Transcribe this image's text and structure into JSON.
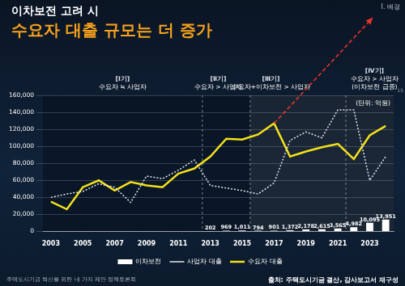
{
  "slide": {
    "section": "Ⅰ. 배경",
    "title": "이차보전 고려 시",
    "subtitle": "수요자 대출 규모는 더 증가",
    "page": "15",
    "footer": "주택도시기금 혁신을 위한 네 가지 제안 정책토론회",
    "source": "출처: 주택도시기금 결산, 감사보고서 재구성"
  },
  "chart_data": {
    "type": "bar",
    "unit_note": "(단위: 억원)",
    "annotations": [
      [
        "[Ⅰ기]",
        "수요자 ≒ 사업자"
      ],
      [
        "[Ⅱ기]",
        "수요자 > 사업자"
      ],
      [
        "[Ⅲ기]",
        "수요자+이차보전 > 사업자"
      ],
      [
        "[Ⅳ기]",
        "수요자 > 사업자",
        "(이차보전 급증)"
      ]
    ],
    "categories": [
      "2003",
      null,
      "2005",
      null,
      "2007",
      null,
      "2009",
      null,
      "2011",
      null,
      "2013",
      null,
      "2015",
      null,
      "2017",
      null,
      "2019",
      null,
      "2021",
      null,
      "2023",
      null
    ],
    "series": [
      {
        "name": "이차보전",
        "type": "bar",
        "color": "#ffffff",
        "data_labels": true,
        "values": [
          null,
          null,
          null,
          null,
          null,
          null,
          null,
          null,
          null,
          null,
          202,
          969,
          1011,
          794,
          901,
          1372,
          2178,
          2615,
          3565,
          4982,
          10095,
          13951
        ],
        "value_labels": [
          null,
          null,
          null,
          null,
          null,
          null,
          null,
          null,
          null,
          null,
          "202",
          "969",
          "1,011",
          "794",
          "901",
          "1,372",
          "2,178",
          "2,615",
          "3,565",
          "4,982",
          "10,095",
          "13,951"
        ]
      },
      {
        "name": "사업자 대출",
        "type": "line",
        "color": "#e6e9ee",
        "line_style": "dotted",
        "values": [
          40000,
          44000,
          47000,
          56000,
          52000,
          34000,
          65000,
          62000,
          72000,
          84000,
          54000,
          51000,
          48000,
          44000,
          57000,
          107000,
          117000,
          110000,
          143000,
          143000,
          60000,
          88000
        ]
      },
      {
        "name": "수요자 대출",
        "type": "line",
        "color": "#f5e11a",
        "line_style": "solid",
        "values": [
          35000,
          26000,
          52000,
          60000,
          48000,
          58000,
          54000,
          52000,
          68000,
          74000,
          88000,
          109000,
          108000,
          114000,
          127000,
          88000,
          94000,
          99000,
          103000,
          85000,
          113000,
          124000
        ]
      }
    ],
    "ylim": [
      0,
      160000
    ],
    "yticks": [
      0,
      {
        "value": 20000,
        "label": "20,000"
      },
      {
        "value": 40000,
        "label": "40,000"
      },
      {
        "value": 60000,
        "label": "60,000"
      },
      {
        "value": 80000,
        "label": "80,000"
      },
      {
        "value": 100000,
        "label": "100,000"
      },
      {
        "value": 120000,
        "label": "120,000"
      },
      {
        "value": 140000,
        "label": "140,000"
      },
      {
        "value": 160000,
        "label": "160,000"
      }
    ],
    "grid": true,
    "legend": "bottom"
  }
}
